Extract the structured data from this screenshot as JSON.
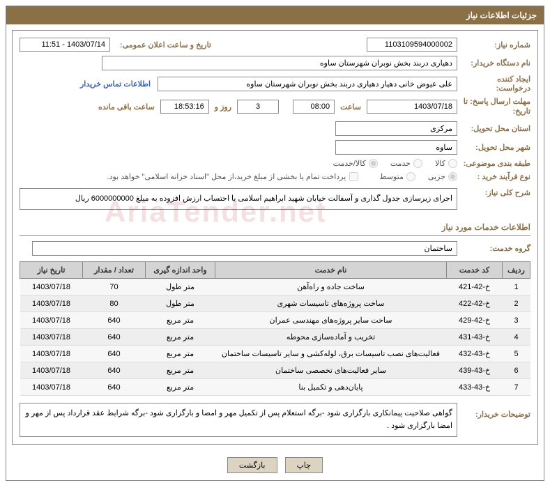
{
  "header": "جزئیات اطلاعات نیاز",
  "fields": {
    "need_number_label": "شماره نیاز:",
    "need_number": "1103109594000002",
    "announce_date_label": "تاریخ و ساعت اعلان عمومی:",
    "announce_date": "1403/07/14 - 11:51",
    "buyer_org_label": "نام دستگاه خریدار:",
    "buyer_org": "دهیاری دربند بخش نوبران شهرستان ساوه",
    "requester_label": "ایجاد کننده درخواست:",
    "requester": "علی عیوض خانی دهیار دهیاری دربند بخش نوبران شهرستان ساوه",
    "contact_link": "اطلاعات تماس خریدار",
    "deadline_label": "مهلت ارسال پاسخ: تا تاریخ:",
    "deadline_date": "1403/07/18",
    "time_label": "ساعت",
    "deadline_time": "08:00",
    "days_value": "3",
    "days_and": "روز و",
    "countdown": "18:53:16",
    "remaining_label": "ساعت باقی مانده",
    "province_label": "استان محل تحویل:",
    "province": "مرکزی",
    "city_label": "شهر محل تحویل:",
    "city": "ساوه",
    "category_label": "طبقه بندی موضوعی:",
    "cat_kala": "کالا",
    "cat_khedmat": "خدمت",
    "cat_both": "کالا/خدمت",
    "process_label": "نوع فرآیند خرید :",
    "proc_jozi": "جزیی",
    "proc_motavaset": "متوسط",
    "treasury_note": "پرداخت تمام یا بخشی از مبلغ خرید،از محل \"اسناد خزانه اسلامی\" خواهد بود.",
    "desc_label": "شرح کلی نیاز:",
    "desc_text": "اجرای زیرسازی جدول گذاری و آسفالت خیابان شهید ابراهیم اسلامی با احتساب ارزش افزوده به مبلغ 6000000000 ریال",
    "services_section": "اطلاعات خدمات مورد نیاز",
    "service_group_label": "گروه خدمت:",
    "service_group": "ساختمان",
    "notes_label": "توضیحات خریدار:",
    "notes_text": "گواهی صلاحیت پیمانکاری بارگزاری شود -برگه استعلام پس از تکمیل مهر و امضا و بارگزاری شود -برگه شرایط عقد قرارداد پس از مهر و امضا بارگزاری شود ."
  },
  "table": {
    "headers": {
      "row": "ردیف",
      "code": "کد خدمت",
      "name": "نام خدمت",
      "unit": "واحد اندازه گیری",
      "qty": "تعداد / مقدار",
      "date": "تاریخ نیاز"
    },
    "rows": [
      {
        "n": "1",
        "code": "خ-42-421",
        "name": "ساخت جاده و راه‌آهن",
        "unit": "متر طول",
        "qty": "70",
        "date": "1403/07/18"
      },
      {
        "n": "2",
        "code": "خ-42-422",
        "name": "ساخت پروژه‌های تاسیسات شهری",
        "unit": "متر طول",
        "qty": "80",
        "date": "1403/07/18"
      },
      {
        "n": "3",
        "code": "خ-42-429",
        "name": "ساخت سایر پروژه‌های مهندسی عمران",
        "unit": "متر مربع",
        "qty": "640",
        "date": "1403/07/18"
      },
      {
        "n": "4",
        "code": "خ-43-431",
        "name": "تخریب و آماده‌سازی محوطه",
        "unit": "متر مربع",
        "qty": "640",
        "date": "1403/07/18"
      },
      {
        "n": "5",
        "code": "خ-43-432",
        "name": "فعالیت‌های نصب تاسیسات برق، لوله‌کشی و سایر تاسیسات ساختمان",
        "unit": "متر مربع",
        "qty": "640",
        "date": "1403/07/18"
      },
      {
        "n": "6",
        "code": "خ-43-439",
        "name": "سایر فعالیت‌های تخصصی ساختمان",
        "unit": "متر مربع",
        "qty": "640",
        "date": "1403/07/18"
      },
      {
        "n": "7",
        "code": "خ-43-433",
        "name": "پایان‌دهی و تکمیل بنا",
        "unit": "متر مربع",
        "qty": "640",
        "date": "1403/07/18"
      }
    ]
  },
  "buttons": {
    "print": "چاپ",
    "back": "بازگشت"
  },
  "watermark": "AriaTender.net"
}
